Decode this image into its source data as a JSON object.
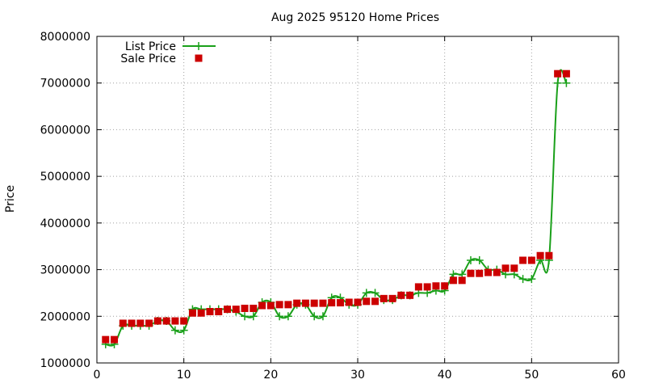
{
  "chart_data": {
    "type": "line",
    "title": "Aug 2025 95120 Home Prices",
    "xlabel": "",
    "ylabel": "Price",
    "xlim": [
      0,
      60
    ],
    "ylim": [
      1000000,
      8000000
    ],
    "x_ticks": [
      0,
      10,
      20,
      30,
      40,
      50,
      60
    ],
    "y_ticks": [
      1000000,
      2000000,
      3000000,
      4000000,
      5000000,
      6000000,
      7000000,
      8000000
    ],
    "grid": true,
    "legend_position": "top-left",
    "series": [
      {
        "name": "List Price",
        "style": "line+cross",
        "color": "#1aa01a",
        "x": [
          1,
          2,
          3,
          4,
          5,
          6,
          7,
          8,
          9,
          10,
          11,
          12,
          13,
          14,
          15,
          16,
          17,
          18,
          19,
          20,
          21,
          22,
          23,
          24,
          25,
          26,
          27,
          28,
          29,
          30,
          31,
          32,
          33,
          34,
          35,
          36,
          37,
          38,
          39,
          40,
          41,
          42,
          43,
          44,
          45,
          46,
          47,
          48,
          49,
          50,
          51,
          52,
          53,
          54
        ],
        "values": [
          1400000,
          1400000,
          1800000,
          1800000,
          1800000,
          1800000,
          1900000,
          1900000,
          1700000,
          1700000,
          2150000,
          2150000,
          2150000,
          2150000,
          2150000,
          2100000,
          2000000,
          2000000,
          2300000,
          2300000,
          2000000,
          2000000,
          2250000,
          2250000,
          2000000,
          2000000,
          2400000,
          2400000,
          2250000,
          2250000,
          2500000,
          2500000,
          2350000,
          2350000,
          2450000,
          2450000,
          2500000,
          2500000,
          2550000,
          2550000,
          2900000,
          2900000,
          3200000,
          3200000,
          3000000,
          3000000,
          2900000,
          2900000,
          2800000,
          2800000,
          3200000,
          3200000,
          7000000,
          7000000
        ]
      },
      {
        "name": "Sale Price",
        "style": "square",
        "color": "#cc0000",
        "x": [
          1,
          2,
          3,
          4,
          5,
          6,
          7,
          8,
          9,
          10,
          11,
          12,
          13,
          14,
          15,
          16,
          17,
          18,
          19,
          20,
          21,
          22,
          23,
          24,
          25,
          26,
          27,
          28,
          29,
          30,
          31,
          32,
          33,
          34,
          35,
          36,
          37,
          38,
          39,
          40,
          41,
          42,
          43,
          44,
          45,
          46,
          47,
          48,
          49,
          50,
          51,
          52,
          53,
          54
        ],
        "values": [
          1500000,
          1500000,
          1850000,
          1850000,
          1850000,
          1850000,
          1900000,
          1900000,
          1900000,
          1900000,
          2070000,
          2070000,
          2100000,
          2100000,
          2150000,
          2150000,
          2170000,
          2170000,
          2230000,
          2230000,
          2250000,
          2250000,
          2280000,
          2280000,
          2280000,
          2280000,
          2290000,
          2290000,
          2300000,
          2300000,
          2320000,
          2320000,
          2380000,
          2380000,
          2450000,
          2450000,
          2630000,
          2630000,
          2650000,
          2650000,
          2770000,
          2770000,
          2920000,
          2920000,
          2940000,
          2940000,
          3030000,
          3030000,
          3200000,
          3200000,
          3300000,
          3300000,
          7200000,
          7200000
        ]
      }
    ]
  }
}
